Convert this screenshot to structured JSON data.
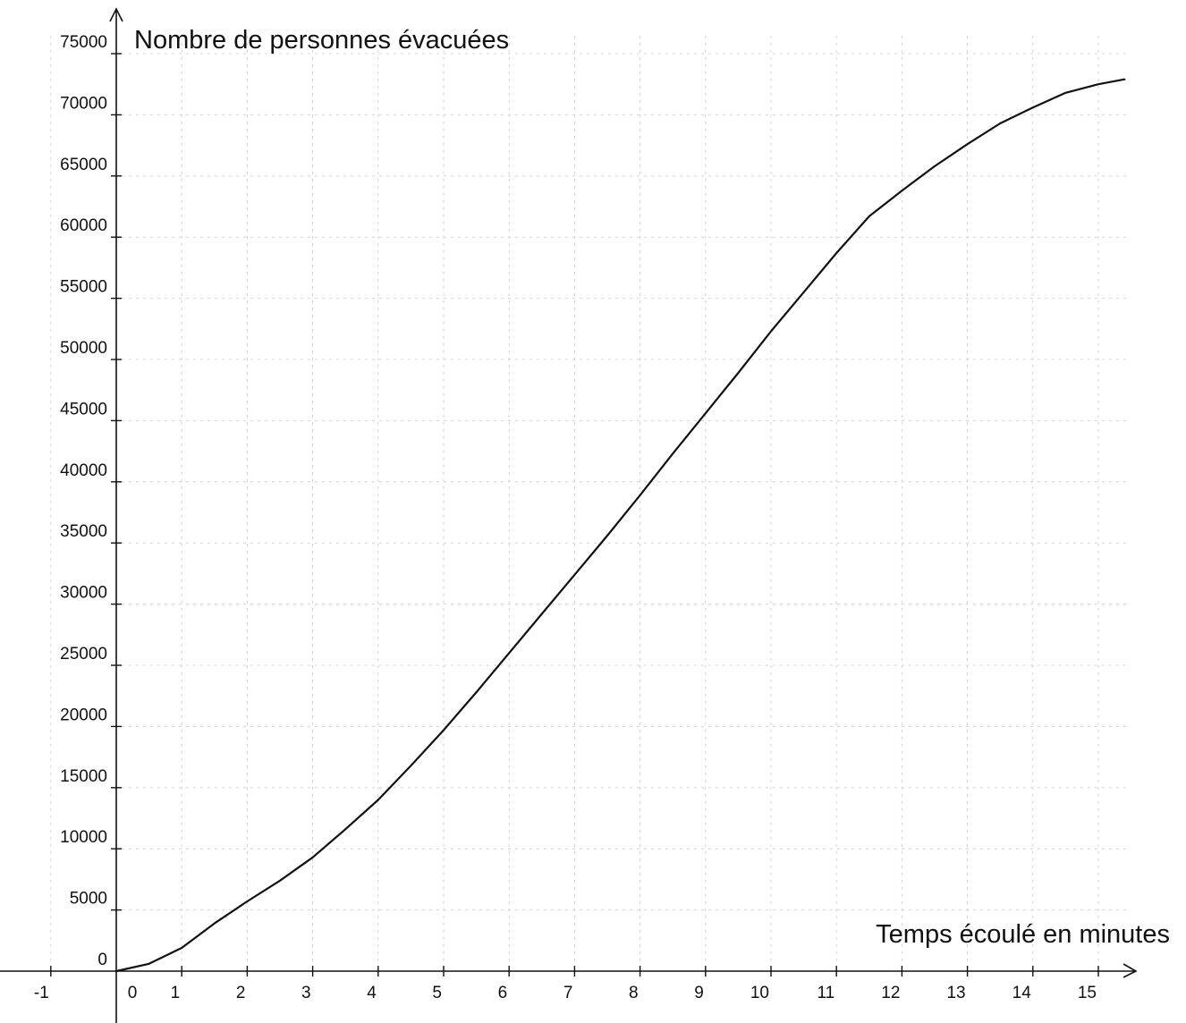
{
  "chart_data": {
    "type": "line",
    "ylabel": "Nombre de personnes évacuées",
    "xlabel": "Temps écoulé en minutes",
    "x_ticks": [
      "-1",
      "0",
      "1",
      "2",
      "3",
      "4",
      "5",
      "6",
      "7",
      "8",
      "9",
      "10",
      "11",
      "12",
      "13",
      "14",
      "15"
    ],
    "y_ticks": [
      "0",
      "5000",
      "10000",
      "15000",
      "20000",
      "25000",
      "30000",
      "35000",
      "40000",
      "45000",
      "50000",
      "55000",
      "60000",
      "65000",
      "70000",
      "75000"
    ],
    "xlim": [
      -1.7,
      15.7
    ],
    "ylim": [
      -5300,
      78000
    ],
    "grid": true,
    "series": [
      {
        "x": [
          0,
          0.5,
          1,
          1.5,
          2,
          2.5,
          3,
          3.5,
          4,
          4.5,
          5,
          5.5,
          6,
          6.5,
          7,
          7.5,
          8,
          8.5,
          9,
          9.5,
          10,
          10.5,
          11,
          11.5,
          12,
          12.5,
          13,
          13.5,
          14,
          14.5,
          15,
          15.4
        ],
        "y": [
          0,
          600,
          1900,
          3900,
          5700,
          7400,
          9300,
          11600,
          14000,
          16800,
          19700,
          22800,
          26000,
          29200,
          32400,
          35600,
          38900,
          42300,
          45600,
          48900,
          52300,
          55500,
          58700,
          61700,
          63800,
          65800,
          67600,
          69300,
          70600,
          71800,
          72500,
          72900
        ]
      }
    ]
  }
}
